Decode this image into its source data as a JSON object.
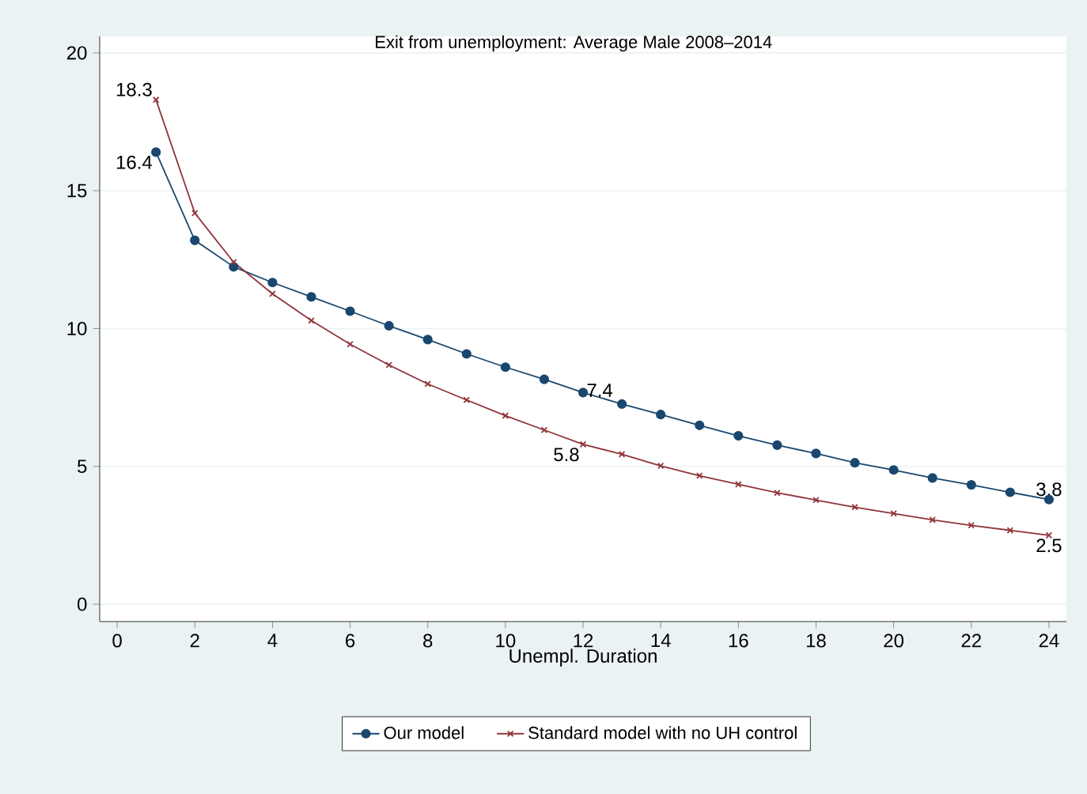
{
  "chart_data": {
    "type": "line",
    "title": "Exit from unemployment:   Average Male 2008–2014",
    "xlabel": "Unempl. Duration",
    "x": [
      1,
      2,
      3,
      4,
      5,
      6,
      7,
      8,
      9,
      10,
      11,
      12,
      13,
      14,
      15,
      16,
      17,
      18,
      19,
      20,
      21,
      22,
      23,
      24
    ],
    "series": [
      {
        "name": "Our model",
        "color": "#1a476f",
        "marker": "circle",
        "values": [
          16.4,
          13.2,
          12.24,
          11.67,
          11.15,
          10.63,
          10.1,
          9.6,
          9.08,
          8.6,
          8.16,
          7.68,
          7.26,
          6.88,
          6.49,
          6.11,
          5.77,
          5.47,
          5.13,
          4.87,
          4.58,
          4.33,
          4.06,
          3.8
        ]
      },
      {
        "name": "Standard model with no UH control",
        "color": "#90353b",
        "marker": "cross",
        "values": [
          18.3,
          14.19,
          12.41,
          11.26,
          10.29,
          9.43,
          8.68,
          7.99,
          7.41,
          6.84,
          6.32,
          5.8,
          5.44,
          5.02,
          4.66,
          4.35,
          4.04,
          3.78,
          3.52,
          3.29,
          3.06,
          2.86,
          2.68,
          2.5
        ]
      }
    ],
    "annotations": [
      {
        "text": "16.4",
        "x": 1,
        "y": 16.4
      },
      {
        "text": "7.4",
        "x": 12,
        "y": 7.4
      },
      {
        "text": "3.8",
        "x": 24,
        "y": 3.8
      },
      {
        "text": "18.3",
        "x": 1,
        "y": 18.3
      },
      {
        "text": "5.8",
        "x": 12,
        "y": 5.8
      },
      {
        "text": "2.5",
        "x": 24,
        "y": 2.5
      }
    ],
    "xlim": [
      -0.45,
      24.45
    ],
    "ylim": [
      -0.63,
      20.6
    ],
    "xticks": [
      0,
      2,
      4,
      6,
      8,
      10,
      12,
      14,
      16,
      18,
      20,
      22,
      24
    ],
    "yticks": [
      0,
      5,
      10,
      15,
      20
    ],
    "grid": "y",
    "legend": "bottom",
    "line_style": "solid"
  }
}
